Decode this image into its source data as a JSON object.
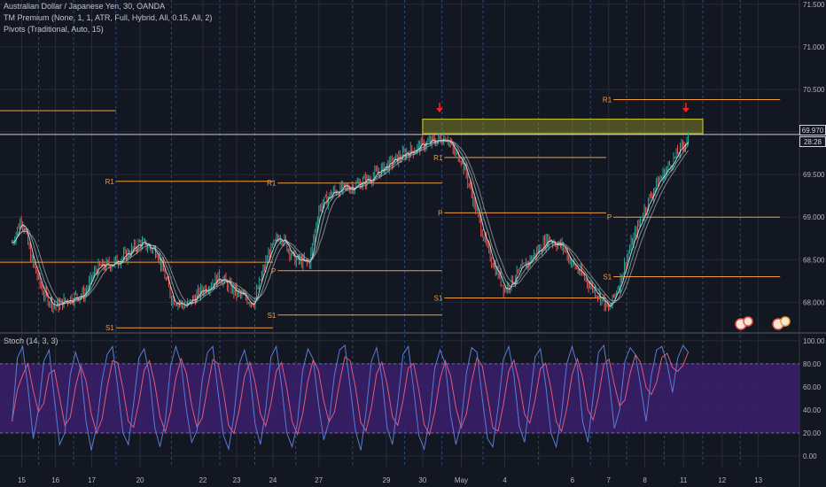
{
  "header": {
    "symbol_title": "Australian Dollar / Japanese Yen, 30, OANDA",
    "indicator_1": "TM Premium (None, 1, 1, ATR, Full, Hybrid, All, 0.15, All, 2)",
    "indicator_2": "Pivots (Traditional, Auto, 15)"
  },
  "stoch_pane": {
    "title": "Stoch (14, 3, 3)"
  },
  "price_tags": {
    "last_price": "69.970",
    "countdown": "28:28"
  },
  "colors": {
    "background": "#131722",
    "candle_up": "#26a69a",
    "candle_down": "#ef5350",
    "pivot_line": "#f59c3c",
    "resistance_zone": "#d4d42a",
    "stoch_k": "#5b7bd5",
    "stoch_d": "#e05a7a",
    "stoch_band": "#3b1f6b",
    "arrow": "#ff1e1e"
  },
  "chart_data": [
    {
      "type": "candlestick",
      "title": "Australian Dollar / Japanese Yen, 30, OANDA",
      "ylim": [
        67.65,
        71.55
      ],
      "y_ticks": [
        "71.500",
        "71.000",
        "70.500",
        "70.000",
        "69.500",
        "69.000",
        "68.500",
        "68.000"
      ],
      "y_tick_values": [
        71.5,
        71.0,
        70.5,
        70.0,
        69.5,
        69.0,
        68.5,
        68.0
      ],
      "x_ticks": [
        "15",
        "16",
        "17",
        "20",
        "22",
        "23",
        "24",
        "27",
        "29",
        "30",
        "May",
        "4",
        "6",
        "7",
        "8",
        "11",
        "12",
        "13"
      ],
      "x_tick_positions": [
        0.4,
        1.8,
        3.3,
        5.3,
        7.9,
        9.3,
        10.8,
        12.7,
        15.5,
        17.0,
        18.6,
        20.4,
        23.2,
        24.7,
        26.2,
        27.8,
        29.4,
        30.9
      ],
      "grid": true,
      "path": [
        [
          0,
          68.7
        ],
        [
          0.4,
          69.0
        ],
        [
          0.8,
          68.5
        ],
        [
          1.3,
          68.1
        ],
        [
          1.8,
          67.95
        ],
        [
          2.4,
          68.05
        ],
        [
          3.0,
          68.1
        ],
        [
          3.5,
          68.4
        ],
        [
          4.1,
          68.45
        ],
        [
          4.7,
          68.55
        ],
        [
          5.3,
          68.7
        ],
        [
          6.0,
          68.6
        ],
        [
          6.6,
          68.05
        ],
        [
          7.2,
          67.95
        ],
        [
          7.9,
          68.15
        ],
        [
          8.6,
          68.3
        ],
        [
          9.3,
          68.1
        ],
        [
          10.0,
          68.0
        ],
        [
          10.6,
          68.55
        ],
        [
          11.1,
          68.8
        ],
        [
          11.7,
          68.5
        ],
        [
          12.3,
          68.45
        ],
        [
          12.7,
          69.1
        ],
        [
          13.3,
          69.3
        ],
        [
          14.0,
          69.35
        ],
        [
          14.8,
          69.45
        ],
        [
          15.5,
          69.6
        ],
        [
          16.3,
          69.75
        ],
        [
          17.0,
          69.85
        ],
        [
          17.6,
          69.9
        ],
        [
          18.0,
          69.95
        ],
        [
          18.3,
          69.75
        ],
        [
          18.6,
          69.7
        ],
        [
          19.1,
          69.2
        ],
        [
          19.7,
          68.6
        ],
        [
          20.4,
          68.15
        ],
        [
          21.0,
          68.35
        ],
        [
          21.6,
          68.55
        ],
        [
          22.2,
          68.75
        ],
        [
          22.8,
          68.65
        ],
        [
          23.2,
          68.45
        ],
        [
          23.8,
          68.25
        ],
        [
          24.4,
          68.05
        ],
        [
          24.7,
          67.9
        ],
        [
          25.1,
          68.2
        ],
        [
          25.6,
          68.65
        ],
        [
          26.2,
          69.1
        ],
        [
          26.7,
          69.4
        ],
        [
          27.2,
          69.6
        ],
        [
          27.8,
          69.85
        ],
        [
          28.0,
          69.95
        ]
      ],
      "pivots": [
        {
          "label": "R1",
          "value": 69.42,
          "x0": 4.3,
          "x1": 10.8
        },
        {
          "label": "",
          "value": 70.25,
          "x0": -0.5,
          "x1": 4.3
        },
        {
          "label": "",
          "value": 68.47,
          "x0": -0.5,
          "x1": 10.8
        },
        {
          "label": "S1",
          "value": 67.7,
          "x0": 4.3,
          "x1": 10.8
        },
        {
          "label": "R1",
          "value": 69.4,
          "x0": 11.0,
          "x1": 17.8
        },
        {
          "label": "P",
          "value": 68.37,
          "x0": 11.0,
          "x1": 17.8
        },
        {
          "label": "S1",
          "value": 67.85,
          "x0": 11.0,
          "x1": 17.8
        },
        {
          "label": "R1",
          "value": 69.7,
          "x0": 17.9,
          "x1": 24.6
        },
        {
          "label": "P",
          "value": 69.05,
          "x0": 17.9,
          "x1": 24.6
        },
        {
          "label": "S1",
          "value": 68.05,
          "x0": 17.9,
          "x1": 24.6
        },
        {
          "label": "R1",
          "value": 70.38,
          "x0": 24.9,
          "x1": 31.8
        },
        {
          "label": "P",
          "value": 69.0,
          "x0": 24.9,
          "x1": 31.8
        },
        {
          "label": "S1",
          "value": 68.3,
          "x0": 24.9,
          "x1": 31.8
        }
      ],
      "resistance_zone": {
        "x0": 17.0,
        "x1": 28.6,
        "y_low": 69.98,
        "y_high": 70.15
      },
      "last_price_line": 69.97,
      "arrows": [
        {
          "x": 17.7,
          "value": 70.24
        },
        {
          "x": 27.9,
          "value": 70.24
        }
      ]
    },
    {
      "type": "line",
      "title": "Stoch (14, 3, 3)",
      "ylim": [
        -10,
        106
      ],
      "y_ticks": [
        "100.00",
        "80.00",
        "60.00",
        "40.00",
        "20.00",
        "0.00"
      ],
      "y_tick_values": [
        100,
        80,
        60,
        40,
        20,
        0
      ],
      "band": [
        20,
        80
      ],
      "series_k": [
        30,
        85,
        95,
        60,
        15,
        40,
        82,
        92,
        50,
        10,
        20,
        70,
        90,
        75,
        30,
        5,
        25,
        65,
        88,
        95,
        60,
        20,
        10,
        45,
        85,
        93,
        70,
        25,
        8,
        30,
        78,
        95,
        80,
        40,
        12,
        22,
        66,
        90,
        95,
        55,
        18,
        6,
        35,
        80,
        92,
        72,
        28,
        10,
        40,
        86,
        95,
        62,
        20,
        8,
        28,
        74,
        93,
        84,
        45,
        14,
        30,
        70,
        92,
        96,
        60,
        22,
        5,
        38,
        82,
        94,
        68,
        24,
        10,
        46,
        88,
        95,
        58,
        18,
        6,
        32,
        76,
        92,
        80,
        36,
        10,
        28,
        72,
        94,
        90,
        50,
        15,
        8,
        42,
        84,
        95,
        70,
        26,
        12,
        48,
        86,
        93,
        62,
        20,
        8,
        36,
        80,
        95,
        78,
        30,
        12,
        52,
        90,
        96,
        66,
        24,
        40,
        82,
        94,
        88,
        60,
        30,
        70,
        92,
        95,
        80,
        55,
        85,
        96,
        90
      ]
    }
  ]
}
